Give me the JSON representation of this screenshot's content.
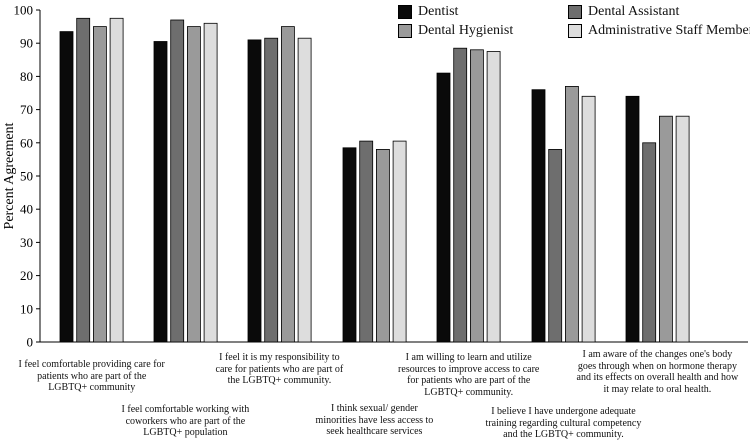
{
  "chart_data": {
    "type": "bar",
    "title": "",
    "xlabel": "",
    "ylabel": "Percent Agreement",
    "ylim": [
      0,
      100
    ],
    "yticks": [
      "0",
      "10",
      "20",
      "30",
      "40",
      "50",
      "60",
      "70",
      "80",
      "90",
      "100"
    ],
    "grid": false,
    "legend_position": "top-right",
    "categories": [
      "I feel comfortable providing care for patients who are part of the LGBTQ+ community",
      "I feel comfortable working with coworkers who are part of the LGBTQ+ population",
      "I feel it is my responsibility to care for patients who are part of the LGBTQ+ community.",
      "I think sexual/ gender minorities have less access to seek healthcare services",
      "I am willing to learn and utilize resources to improve access to care for patients who are part of the LGBTQ+ community.",
      "I believe I have undergone adequate training regarding cultural competency and the LGBTQ+ community.",
      "I am aware of the changes one's body goes through when on hormone therapy and its effects on overall health and how it may relate to oral health."
    ],
    "category_lines": [
      [
        "I feel comfortable providing care for",
        "patients who are part of the",
        "LGBTQ+ community"
      ],
      [
        "I feel comfortable working with",
        "coworkers who are part of the",
        "LGBTQ+ population"
      ],
      [
        "I feel it is my responsibility to",
        "care for patients who are part of",
        "the LGBTQ+ community."
      ],
      [
        "I think sexual/ gender",
        "minorities have less access to",
        "seek healthcare services"
      ],
      [
        "I am willing to learn and utilize",
        "resources to improve access to care",
        "for patients who are part of the",
        "LGBTQ+ community."
      ],
      [
        "I believe I have undergone adequate",
        "training regarding cultural competency",
        "and the LGBTQ+ community."
      ],
      [
        "I am aware of the changes one's body",
        "goes through when on hormone therapy",
        "and its effects on overall health and how",
        "it may relate to oral health."
      ]
    ],
    "series": [
      {
        "name": "Dentist",
        "color": "#0a0a0a",
        "values": [
          93.5,
          90.5,
          91,
          58.5,
          81,
          76,
          74
        ]
      },
      {
        "name": "Dental Assistant",
        "color": "#6e6e6e",
        "values": [
          97.5,
          97,
          91.5,
          60.5,
          88.5,
          58,
          60
        ]
      },
      {
        "name": "Dental Hygienist",
        "color": "#9a9a9a",
        "values": [
          95,
          95,
          95,
          58,
          88,
          77,
          68
        ]
      },
      {
        "name": "Administrative Staff Member",
        "color": "#dddddd",
        "values": [
          97.5,
          96,
          91.5,
          60.5,
          87.5,
          74,
          68
        ]
      }
    ]
  }
}
